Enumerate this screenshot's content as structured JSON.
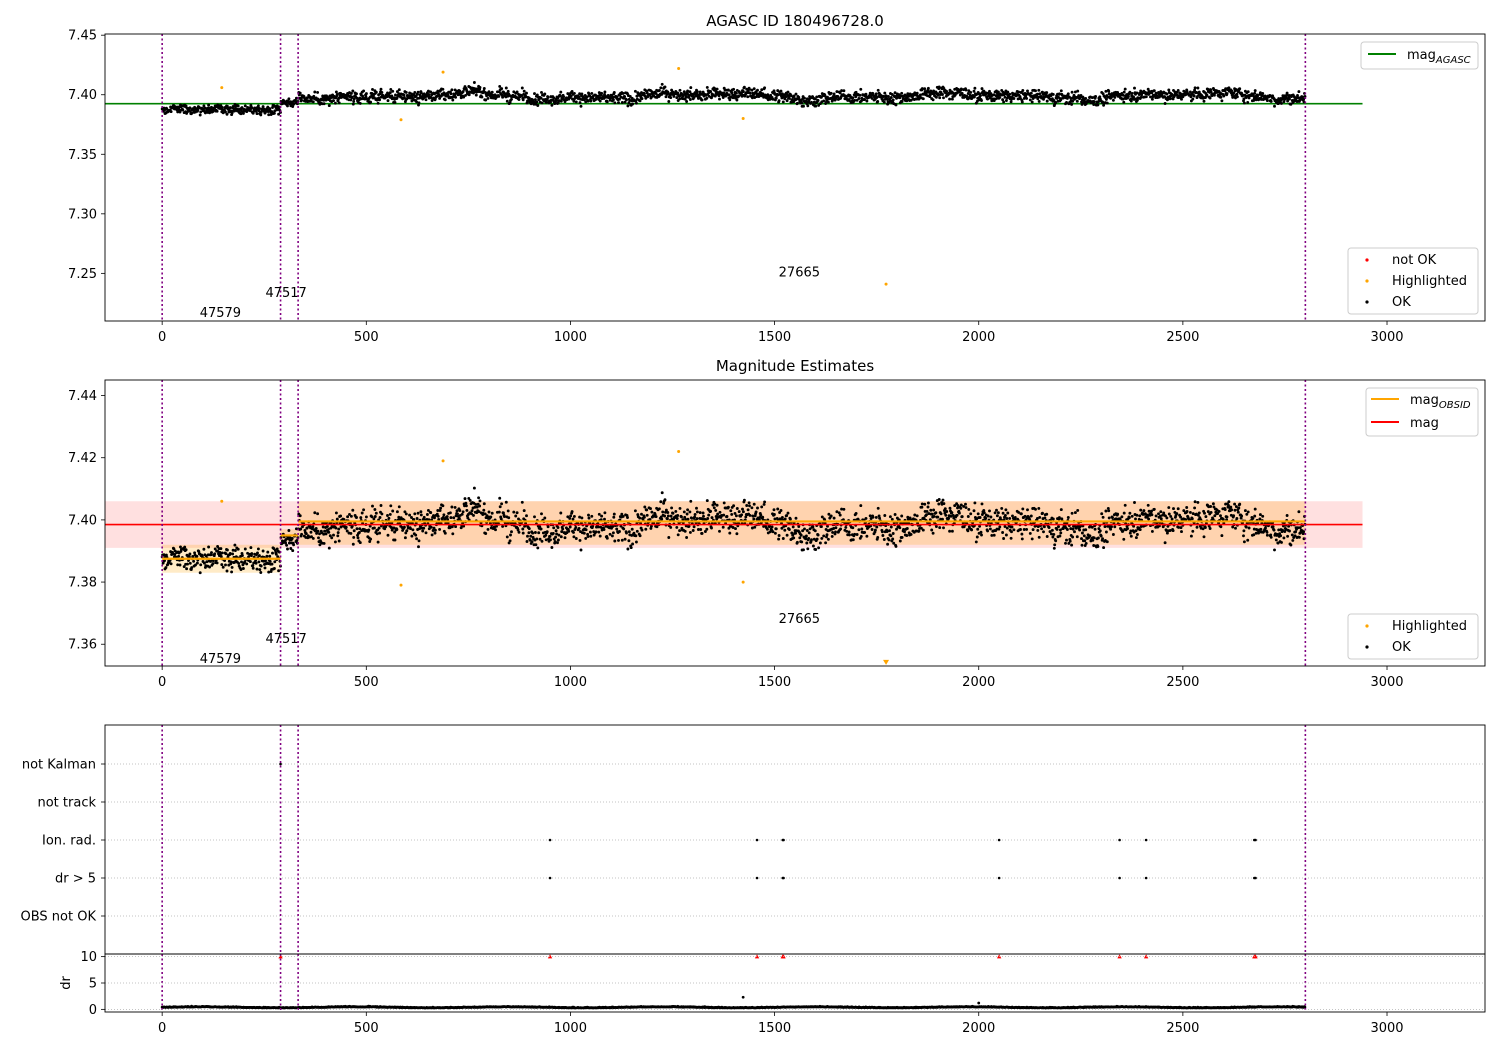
{
  "chart_data": [
    {
      "type": "scatter",
      "title": "AGASC ID 180496728.0",
      "xlim": [
        -140,
        3240
      ],
      "ylim": [
        7.21,
        7.451
      ],
      "xticks": [
        "0",
        "500",
        "1000",
        "1500",
        "2000",
        "2500",
        "3000"
      ],
      "yticks": [
        "7.25",
        "7.30",
        "7.35",
        "7.40",
        "7.45"
      ],
      "grid": false,
      "vlines": [
        0,
        290,
        333,
        2800
      ],
      "hline": {
        "name": "mag",
        "subscript": "AGASC",
        "value": 7.3925,
        "x_range": [
          -140,
          2940
        ],
        "color": "#008000"
      },
      "annotations": [
        {
          "text": "47579",
          "x": 92,
          "y": 7.2175
        },
        {
          "text": "47517",
          "x": 253,
          "y": 7.2345
        },
        {
          "text": "27665",
          "x": 1510,
          "y": 7.2515
        }
      ],
      "highlighted_points": [
        [
          146,
          7.406
        ],
        [
          585,
          7.379
        ],
        [
          688,
          7.419
        ],
        [
          1265,
          7.422
        ],
        [
          1423,
          7.38
        ],
        [
          1773,
          7.241
        ]
      ],
      "ok_levels": [
        {
          "x0": 0,
          "x1": 290,
          "mean": 7.387,
          "spread": 0.012
        },
        {
          "x0": 290,
          "x1": 333,
          "mean": 7.394,
          "spread": 0.012
        },
        {
          "x0": 333,
          "x1": 2800,
          "mean": 7.399,
          "spread": 0.016
        }
      ],
      "legends": [
        {
          "placement": "upper-right",
          "entries": [
            {
              "label": "mag",
              "subscript": "AGASC",
              "kind": "line",
              "color": "#008000"
            }
          ]
        },
        {
          "placement": "lower-right",
          "entries": [
            {
              "label": "not OK",
              "kind": "marker",
              "color": "#ff0000"
            },
            {
              "label": "Highlighted",
              "kind": "marker",
              "color": "#ffa500"
            },
            {
              "label": "OK",
              "kind": "marker",
              "color": "#000000"
            }
          ]
        }
      ]
    },
    {
      "type": "scatter",
      "title": "Magnitude Estimates",
      "xlim": [
        -140,
        3240
      ],
      "ylim": [
        7.353,
        7.445
      ],
      "xticks": [
        "0",
        "500",
        "1000",
        "1500",
        "2000",
        "2500",
        "3000"
      ],
      "yticks": [
        "7.36",
        "7.38",
        "7.40",
        "7.42",
        "7.44"
      ],
      "grid": false,
      "vlines": [
        0,
        290,
        333,
        2800
      ],
      "mag_line": {
        "name": "mag",
        "value": 7.3985,
        "color": "#ff0000",
        "band": [
          7.391,
          7.406
        ],
        "x_range": [
          -140,
          2940
        ]
      },
      "obsid_segments": [
        {
          "x0": 0,
          "x1": 290,
          "value": 7.3875,
          "band": [
            7.383,
            7.392
          ]
        },
        {
          "x0": 290,
          "x1": 333,
          "value": 7.395,
          "band": [
            7.393,
            7.397
          ]
        },
        {
          "x0": 333,
          "x1": 2800,
          "value": 7.3995,
          "band": [
            7.392,
            7.406
          ]
        }
      ],
      "annotations": [
        {
          "text": "47579",
          "x": 92,
          "y": 7.3555
        },
        {
          "text": "47517",
          "x": 253,
          "y": 7.362
        },
        {
          "text": "27665",
          "x": 1510,
          "y": 7.3685
        }
      ],
      "highlighted_points": [
        [
          146,
          7.406
        ],
        [
          585,
          7.379
        ],
        [
          688,
          7.419
        ],
        [
          1265,
          7.422
        ],
        [
          1423,
          7.38
        ]
      ],
      "edge_marker": {
        "x": 1773,
        "y": 7.354
      },
      "legends": [
        {
          "placement": "upper-right",
          "entries": [
            {
              "label": "mag",
              "subscript": "OBSID",
              "kind": "line",
              "color": "#ffa500"
            },
            {
              "label": "mag",
              "kind": "line",
              "color": "#ff0000"
            }
          ]
        },
        {
          "placement": "lower-right",
          "entries": [
            {
              "label": "Highlighted",
              "kind": "marker",
              "color": "#ffa500"
            },
            {
              "label": "OK",
              "kind": "marker",
              "color": "#000000"
            }
          ]
        }
      ]
    },
    {
      "type": "scatter",
      "title": "",
      "xlim": [
        -140,
        3240
      ],
      "categories": [
        "not Kalman",
        "not track",
        "Ion. rad.",
        "dr > 5",
        "OBS not OK"
      ],
      "grid": true,
      "vlines": [
        0,
        290,
        333,
        2800
      ],
      "flags": {
        "not Kalman": [
          290
        ],
        "not track": [],
        "Ion. rad.": [
          950,
          1457,
          1520,
          1522,
          2050,
          2345,
          2410,
          2675,
          2678
        ],
        "dr > 5": [
          950,
          1457,
          1520,
          1522,
          2050,
          2345,
          2410,
          2675,
          2678
        ],
        "OBS not OK": []
      }
    },
    {
      "type": "scatter",
      "title": "",
      "xlim": [
        -140,
        3240
      ],
      "ylim": [
        -0.5,
        10.5
      ],
      "ylabel": "dr",
      "xticks": [
        "0",
        "500",
        "1000",
        "1500",
        "2000",
        "2500",
        "3000"
      ],
      "yticks": [
        "0",
        "5",
        "10"
      ],
      "grid": true,
      "vlines": [
        0,
        290,
        333,
        2800
      ],
      "clipped_points": [
        290,
        950,
        1457,
        1520,
        1522,
        2050,
        2345,
        2410,
        2675,
        2678
      ],
      "outlier_points": [
        [
          1423,
          2.3
        ],
        [
          2000,
          1.2
        ]
      ],
      "baseline": {
        "mean": 0.35,
        "spread": 0.3
      }
    }
  ]
}
